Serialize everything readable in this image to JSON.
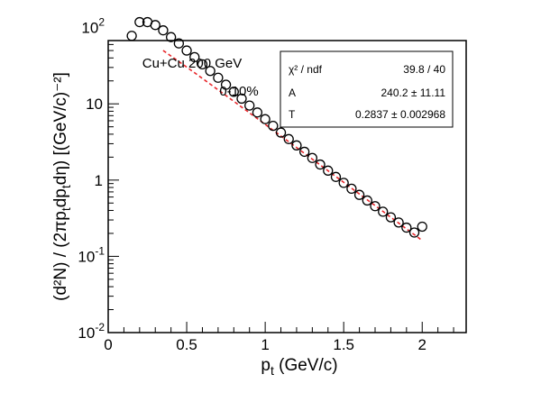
{
  "chart_data": {
    "type": "scatter",
    "xlabel": "p",
    "xlabel_sub": "t",
    "xlabel_unit": " (GeV/c)",
    "ylabel": "(d²N) / (2πp",
    "ylabel_sub1": "t",
    "ylabel_mid": "dp",
    "ylabel_sub2": "t",
    "ylabel_end": "dη) [(GeV/c)⁻²]",
    "xlim": [
      0,
      2.28
    ],
    "ylim_log10": [
      -2,
      1.83
    ],
    "y_scale": "log",
    "grid": false,
    "x_ticks": [
      {
        "value": 0,
        "label": "0"
      },
      {
        "value": 0.5,
        "label": "0.5"
      },
      {
        "value": 1,
        "label": "1"
      },
      {
        "value": 1.5,
        "label": "1.5"
      },
      {
        "value": 2,
        "label": "2"
      }
    ],
    "y_ticks": [
      {
        "value": 0.01,
        "base": "10",
        "exp": "-2"
      },
      {
        "value": 0.1,
        "base": "10",
        "exp": "-1"
      },
      {
        "value": 1,
        "base": "1",
        "exp": ""
      },
      {
        "value": 10,
        "base": "10",
        "exp": ""
      },
      {
        "value": 100,
        "base": "10",
        "exp": "2"
      }
    ],
    "annotations": [
      "Cu+Cu 200 GeV",
      "0-10%"
    ],
    "stats_box": [
      {
        "label": "χ² / ndf",
        "value": "39.8 / 40"
      },
      {
        "label": "A",
        "value": "240.2 ± 11.11"
      },
      {
        "label": "T",
        "value": "0.2837 ± 0.002968"
      }
    ],
    "fit": {
      "color": "#e8262a",
      "x_range": [
        0.35,
        2.0
      ],
      "A": 240.2,
      "T": 0.2837
    },
    "series": [
      {
        "marker": "open-circle",
        "color": "#000000",
        "x": [
          0.15,
          0.2,
          0.25,
          0.3,
          0.35,
          0.4,
          0.45,
          0.5,
          0.55,
          0.6,
          0.65,
          0.7,
          0.75,
          0.8,
          0.85,
          0.9,
          0.95,
          1.0,
          1.05,
          1.1,
          1.15,
          1.2,
          1.25,
          1.3,
          1.35,
          1.4,
          1.45,
          1.5,
          1.55,
          1.6,
          1.65,
          1.7,
          1.75,
          1.8,
          1.85,
          1.9,
          1.95,
          2.0
        ],
        "y": [
          78,
          118,
          118,
          108,
          92,
          75,
          62,
          50,
          41,
          33,
          27,
          22,
          17.8,
          14.4,
          11.7,
          9.5,
          7.7,
          6.3,
          5.15,
          4.2,
          3.45,
          2.85,
          2.35,
          1.95,
          1.6,
          1.33,
          1.1,
          0.92,
          0.77,
          0.64,
          0.54,
          0.455,
          0.385,
          0.325,
          0.278,
          0.238,
          0.205,
          0.245
        ]
      }
    ]
  }
}
